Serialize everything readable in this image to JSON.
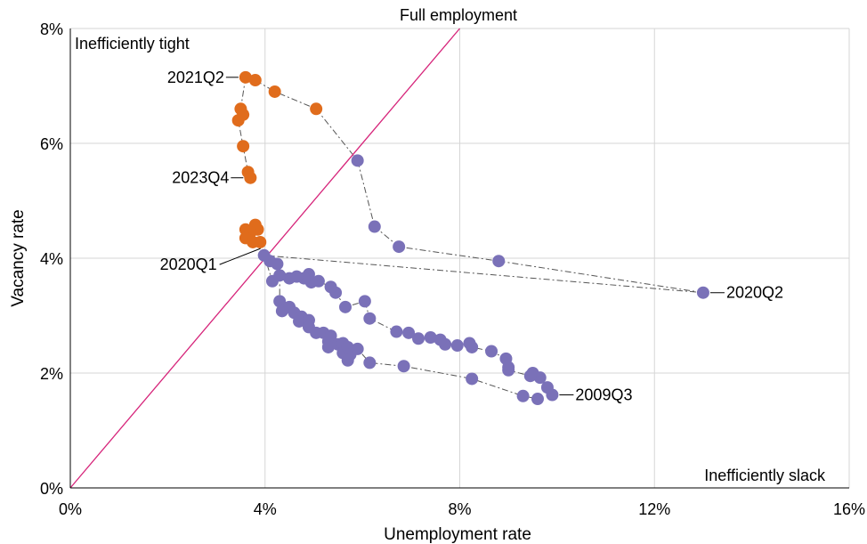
{
  "chart_data": {
    "type": "scatter",
    "xlabel": "Unemployment rate",
    "ylabel": "Vacancy rate",
    "xlim": [
      0,
      16
    ],
    "ylim": [
      0,
      8
    ],
    "x_ticks": [
      {
        "value": 0,
        "label": "0%"
      },
      {
        "value": 4,
        "label": "4%"
      },
      {
        "value": 8,
        "label": "8%"
      },
      {
        "value": 12,
        "label": "12%"
      },
      {
        "value": 16,
        "label": "16%"
      }
    ],
    "y_ticks": [
      {
        "value": 0,
        "label": "0%"
      },
      {
        "value": 2,
        "label": "2%"
      },
      {
        "value": 4,
        "label": "4%"
      },
      {
        "value": 6,
        "label": "6%"
      },
      {
        "value": 8,
        "label": "8%"
      }
    ],
    "grid": true,
    "reference_line": {
      "label": "Full employment",
      "color": "#d6247a",
      "from": [
        0,
        0
      ],
      "to": [
        8,
        8
      ]
    },
    "region_labels": {
      "top_left": "Inefficiently tight",
      "bottom_right": "Inefficiently slack"
    },
    "connector_color": "#555555",
    "series": [
      {
        "color": "#7a71b8",
        "path": [
          [
            9.9,
            1.62
          ],
          [
            9.8,
            1.75
          ],
          [
            9.65,
            1.92
          ],
          [
            9.5,
            2.0
          ],
          [
            9.45,
            1.95
          ],
          [
            9.0,
            2.05
          ],
          [
            9.0,
            2.1
          ],
          [
            8.95,
            2.25
          ],
          [
            8.65,
            2.38
          ],
          [
            8.25,
            2.45
          ],
          [
            8.2,
            2.52
          ],
          [
            7.95,
            2.48
          ],
          [
            7.7,
            2.5
          ],
          [
            7.6,
            2.58
          ],
          [
            7.4,
            2.62
          ],
          [
            7.15,
            2.6
          ],
          [
            6.95,
            2.7
          ],
          [
            6.7,
            2.72
          ],
          [
            6.15,
            2.95
          ],
          [
            6.05,
            3.25
          ],
          [
            5.65,
            3.15
          ],
          [
            5.45,
            3.4
          ],
          [
            5.35,
            3.5
          ],
          [
            5.1,
            3.6
          ],
          [
            4.95,
            3.58
          ],
          [
            4.9,
            3.72
          ],
          [
            4.8,
            3.65
          ],
          [
            4.65,
            3.68
          ],
          [
            4.5,
            3.65
          ],
          [
            4.25,
            3.9
          ],
          [
            4.1,
            3.95
          ],
          [
            3.98,
            4.05
          ],
          [
            4.15,
            3.6
          ],
          [
            4.3,
            3.7
          ],
          [
            4.3,
            3.25
          ],
          [
            4.35,
            3.08
          ],
          [
            4.5,
            3.15
          ],
          [
            4.6,
            3.05
          ],
          [
            4.75,
            2.98
          ],
          [
            4.7,
            2.9
          ],
          [
            4.9,
            2.92
          ],
          [
            4.9,
            2.8
          ],
          [
            5.05,
            2.7
          ],
          [
            5.2,
            2.7
          ],
          [
            5.35,
            2.65
          ],
          [
            5.3,
            2.55
          ],
          [
            5.3,
            2.45
          ],
          [
            5.5,
            2.5
          ],
          [
            5.6,
            2.52
          ],
          [
            5.6,
            2.35
          ],
          [
            5.7,
            2.45
          ],
          [
            5.75,
            2.32
          ],
          [
            5.7,
            2.22
          ],
          [
            5.9,
            2.42
          ],
          [
            6.15,
            2.18
          ],
          [
            6.85,
            2.12
          ],
          [
            8.25,
            1.9
          ],
          [
            9.3,
            1.6
          ],
          [
            9.6,
            1.55
          ]
        ],
        "path2": [
          [
            3.98,
            4.05
          ],
          [
            13.0,
            3.4
          ],
          [
            8.8,
            3.95
          ],
          [
            6.75,
            4.2
          ],
          [
            6.25,
            4.55
          ],
          [
            5.9,
            5.7
          ],
          [
            5.05,
            6.6
          ],
          [
            4.2,
            6.9
          ],
          [
            3.8,
            7.1
          ],
          [
            3.6,
            7.15
          ]
        ]
      },
      {
        "color": "#e06c1c",
        "points": [
          [
            3.6,
            7.15
          ],
          [
            3.8,
            7.1
          ],
          [
            4.2,
            6.9
          ],
          [
            5.05,
            6.6
          ],
          [
            3.5,
            6.6
          ],
          [
            3.55,
            6.5
          ],
          [
            3.45,
            6.4
          ],
          [
            3.55,
            5.95
          ],
          [
            3.65,
            5.5
          ],
          [
            3.7,
            5.4
          ],
          [
            3.6,
            4.5
          ],
          [
            3.8,
            4.58
          ],
          [
            3.85,
            4.5
          ],
          [
            3.7,
            4.45
          ],
          [
            3.6,
            4.35
          ],
          [
            3.75,
            4.28
          ],
          [
            3.9,
            4.28
          ]
        ],
        "path": [
          [
            3.6,
            7.15
          ],
          [
            3.5,
            6.6
          ],
          [
            3.45,
            6.4
          ],
          [
            3.55,
            5.95
          ],
          [
            3.65,
            5.5
          ],
          [
            3.7,
            5.4
          ]
        ]
      }
    ],
    "labels": [
      {
        "text": "2021Q2",
        "x": 3.6,
        "y": 7.15,
        "side": "left"
      },
      {
        "text": "2023Q4",
        "x": 3.7,
        "y": 5.4,
        "side": "left"
      },
      {
        "text": "2020Q1",
        "x": 3.98,
        "y": 4.2,
        "side": "left-down"
      },
      {
        "text": "2020Q2",
        "x": 13.0,
        "y": 3.4,
        "side": "right"
      },
      {
        "text": "2009Q3",
        "x": 9.9,
        "y": 1.62,
        "side": "right"
      }
    ]
  }
}
